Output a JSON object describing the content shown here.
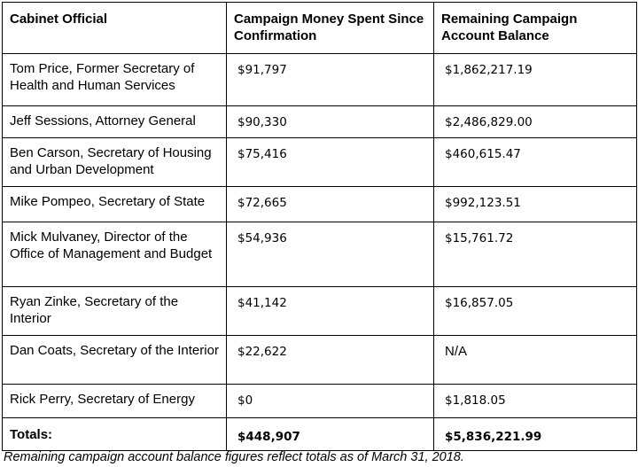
{
  "headers": [
    "Cabinet Official",
    "Campaign Money Spent Since Confirmation",
    "Remaining Campaign Account Balance"
  ],
  "rows": [
    [
      "Tom Price, Former Secretary of Health and Human Services",
      "$91,797",
      "$1,862,217.19"
    ],
    [
      "Jeff Sessions, Attorney General",
      "$90,330",
      "$2,486,829.00"
    ],
    [
      "Ben Carson, Secretary of Housing and Urban Development",
      "$75,416",
      "$460,615.47"
    ],
    [
      "Mike Pompeo, Secretary of State",
      "$72,665",
      "$992,123.51"
    ],
    [
      "Mick Mulvaney, Director of the Office of Management and Budget",
      "$54,936",
      "$15,761.72"
    ],
    [
      "Ryan Zinke, Secretary of the Interior",
      "$41,142",
      "$16,857.05"
    ],
    [
      "Dan Coats, Secretary of the Interior",
      "$22,622",
      "N/A"
    ],
    [
      "Rick Perry, Secretary of Energy",
      "$0",
      "$1,818.05"
    ]
  ],
  "totals": [
    "Totals:",
    "$448,907",
    "$5,836,221.99"
  ],
  "caption": "Remaining campaign account balance figures reflect totals as of March 31, 2018."
}
